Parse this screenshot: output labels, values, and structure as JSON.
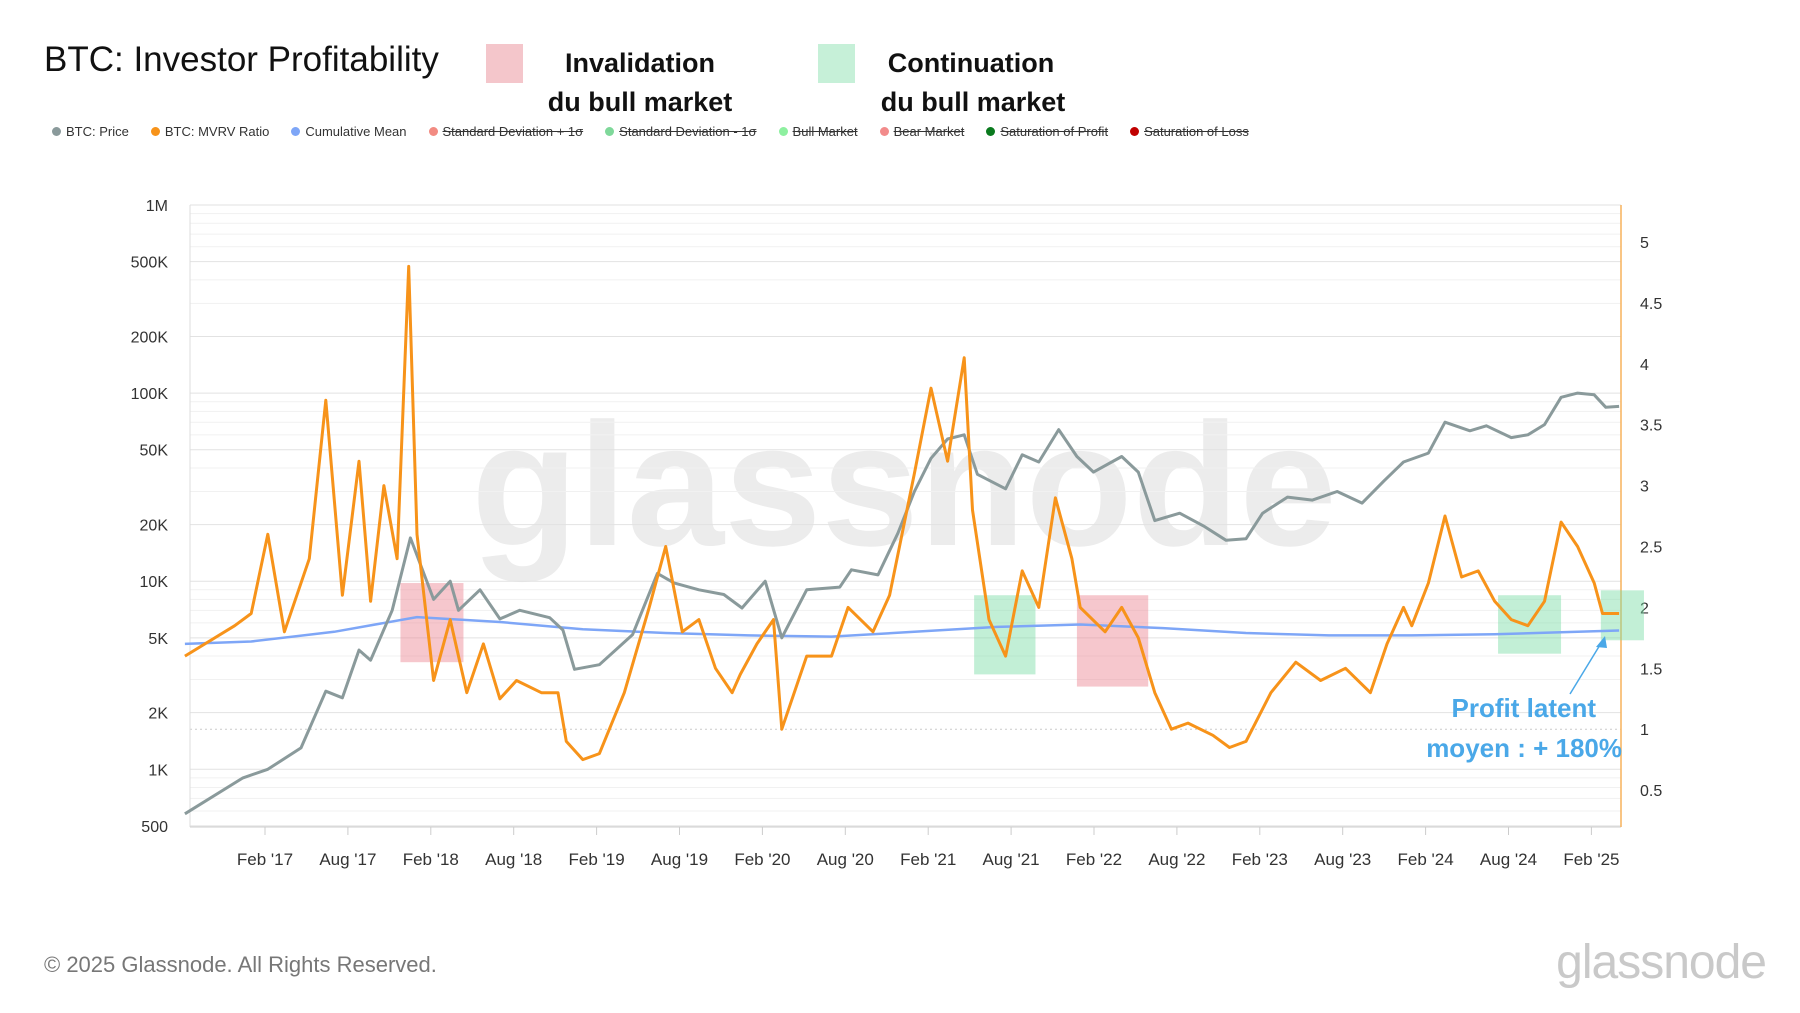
{
  "header": {
    "title": "BTC: Investor Profitability",
    "invalidation": {
      "line1": "Invalidation",
      "line2": "du bull market",
      "color": "#f4c6cb"
    },
    "continuation": {
      "line1": "Continuation",
      "line2": "du bull market",
      "color": "#c6f0d8"
    }
  },
  "legend": [
    {
      "label": "BTC: Price",
      "color": "#8a9a9b",
      "active": true
    },
    {
      "label": "BTC: MVRV Ratio",
      "color": "#f7931a",
      "active": true
    },
    {
      "label": "Cumulative Mean",
      "color": "#7ea6f7",
      "active": true
    },
    {
      "label": "Standard Deviation + 1σ",
      "color": "#f28b82",
      "active": false
    },
    {
      "label": "Standard Deviation - 1σ",
      "color": "#7fd89a",
      "active": false
    },
    {
      "label": "Bull Market",
      "color": "#8ef0a0",
      "active": false
    },
    {
      "label": "Bear Market",
      "color": "#f28b8b",
      "active": false
    },
    {
      "label": "Saturation of Profit",
      "color": "#0a7a1e",
      "active": false
    },
    {
      "label": "Saturation of Loss",
      "color": "#c00000",
      "active": false
    }
  ],
  "annotation": {
    "line1": "Profit latent",
    "line2": "moyen : + 180%",
    "color": "#4aa8e8"
  },
  "footer": {
    "copyright": "© 2025 Glassnode. All Rights Reserved.",
    "logo": "glassnode",
    "watermark": "glassnode"
  },
  "chart_data": {
    "type": "line",
    "title": "BTC: Investor Profitability",
    "x_ticks": [
      "Feb '17",
      "Aug '17",
      "Feb '18",
      "Aug '18",
      "Feb '19",
      "Aug '19",
      "Feb '20",
      "Aug '20",
      "Feb '21",
      "Aug '21",
      "Feb '22",
      "Aug '22",
      "Feb '23",
      "Aug '23",
      "Feb '24",
      "Aug '24",
      "Feb '25"
    ],
    "x_tick_dates": [
      2017.083,
      2017.583,
      2018.083,
      2018.583,
      2019.083,
      2019.583,
      2020.083,
      2020.583,
      2021.083,
      2021.583,
      2022.083,
      2022.583,
      2023.083,
      2023.583,
      2024.083,
      2024.583,
      2025.083
    ],
    "x_range": [
      2016.6,
      2025.3
    ],
    "left_axis": {
      "scale": "log",
      "range": [
        500,
        1000000
      ],
      "ticks": [
        {
          "v": 1000000,
          "l": "1M"
        },
        {
          "v": 500000,
          "l": "500K"
        },
        {
          "v": 200000,
          "l": "200K"
        },
        {
          "v": 100000,
          "l": "100K"
        },
        {
          "v": 50000,
          "l": "50K"
        },
        {
          "v": 20000,
          "l": "20K"
        },
        {
          "v": 10000,
          "l": "10K"
        },
        {
          "v": 5000,
          "l": "5K"
        },
        {
          "v": 2000,
          "l": "2K"
        },
        {
          "v": 1000,
          "l": "1K"
        },
        {
          "v": 500,
          "l": "500"
        }
      ]
    },
    "right_axis": {
      "scale": "linear",
      "range": [
        0.2,
        5.28
      ],
      "ticks": [
        {
          "v": 5,
          "l": "5"
        },
        {
          "v": 4.5,
          "l": "4.5"
        },
        {
          "v": 4,
          "l": "4"
        },
        {
          "v": 3.5,
          "l": "3.5"
        },
        {
          "v": 3,
          "l": "3"
        },
        {
          "v": 2.5,
          "l": "2.5"
        },
        {
          "v": 2,
          "l": "2"
        },
        {
          "v": 1.5,
          "l": "1.5"
        },
        {
          "v": 1,
          "l": "1"
        },
        {
          "v": 0.5,
          "l": "0.5"
        }
      ]
    },
    "series": [
      {
        "name": "BTC: Price",
        "axis": "left",
        "color": "#8a9a9b",
        "points": [
          [
            2016.6,
            580
          ],
          [
            2016.95,
            900
          ],
          [
            2017.1,
            1000
          ],
          [
            2017.3,
            1300
          ],
          [
            2017.45,
            2600
          ],
          [
            2017.55,
            2400
          ],
          [
            2017.65,
            4300
          ],
          [
            2017.72,
            3800
          ],
          [
            2017.85,
            7000
          ],
          [
            2017.96,
            17000
          ],
          [
            2018.1,
            8000
          ],
          [
            2018.2,
            10000
          ],
          [
            2018.25,
            7000
          ],
          [
            2018.38,
            9000
          ],
          [
            2018.5,
            6300
          ],
          [
            2018.62,
            7000
          ],
          [
            2018.8,
            6400
          ],
          [
            2018.88,
            5500
          ],
          [
            2018.95,
            3400
          ],
          [
            2019.1,
            3600
          ],
          [
            2019.3,
            5200
          ],
          [
            2019.45,
            11000
          ],
          [
            2019.55,
            9800
          ],
          [
            2019.7,
            9000
          ],
          [
            2019.85,
            8500
          ],
          [
            2019.96,
            7200
          ],
          [
            2020.1,
            10000
          ],
          [
            2020.2,
            5000
          ],
          [
            2020.35,
            9000
          ],
          [
            2020.55,
            9300
          ],
          [
            2020.62,
            11500
          ],
          [
            2020.78,
            10800
          ],
          [
            2020.9,
            18000
          ],
          [
            2021.0,
            30000
          ],
          [
            2021.1,
            45000
          ],
          [
            2021.2,
            57000
          ],
          [
            2021.3,
            60000
          ],
          [
            2021.38,
            37000
          ],
          [
            2021.55,
            31000
          ],
          [
            2021.65,
            47000
          ],
          [
            2021.75,
            43000
          ],
          [
            2021.87,
            64000
          ],
          [
            2021.98,
            46000
          ],
          [
            2022.08,
            38000
          ],
          [
            2022.25,
            46000
          ],
          [
            2022.35,
            38000
          ],
          [
            2022.45,
            21000
          ],
          [
            2022.6,
            23000
          ],
          [
            2022.75,
            19500
          ],
          [
            2022.88,
            16500
          ],
          [
            2023.0,
            16800
          ],
          [
            2023.1,
            23000
          ],
          [
            2023.25,
            28000
          ],
          [
            2023.4,
            27000
          ],
          [
            2023.55,
            30000
          ],
          [
            2023.7,
            26000
          ],
          [
            2023.83,
            34000
          ],
          [
            2023.95,
            43000
          ],
          [
            2024.1,
            48000
          ],
          [
            2024.2,
            70000
          ],
          [
            2024.35,
            63000
          ],
          [
            2024.45,
            67000
          ],
          [
            2024.6,
            58000
          ],
          [
            2024.7,
            60000
          ],
          [
            2024.8,
            68000
          ],
          [
            2024.9,
            95000
          ],
          [
            2025.0,
            100000
          ],
          [
            2025.1,
            98000
          ],
          [
            2025.17,
            84000
          ],
          [
            2025.25,
            85000
          ]
        ]
      },
      {
        "name": "BTC: MVRV Ratio",
        "axis": "right",
        "color": "#f7931a",
        "points": [
          [
            2016.6,
            1.6
          ],
          [
            2016.9,
            1.85
          ],
          [
            2017.0,
            1.95
          ],
          [
            2017.1,
            2.6
          ],
          [
            2017.2,
            1.8
          ],
          [
            2017.35,
            2.4
          ],
          [
            2017.45,
            3.7
          ],
          [
            2017.55,
            2.1
          ],
          [
            2017.65,
            3.2
          ],
          [
            2017.72,
            2.05
          ],
          [
            2017.8,
            3.0
          ],
          [
            2017.88,
            2.4
          ],
          [
            2017.95,
            4.8
          ],
          [
            2018.0,
            2.6
          ],
          [
            2018.1,
            1.4
          ],
          [
            2018.2,
            1.9
          ],
          [
            2018.3,
            1.3
          ],
          [
            2018.4,
            1.7
          ],
          [
            2018.5,
            1.25
          ],
          [
            2018.6,
            1.4
          ],
          [
            2018.75,
            1.3
          ],
          [
            2018.85,
            1.3
          ],
          [
            2018.9,
            0.9
          ],
          [
            2019.0,
            0.75
          ],
          [
            2019.1,
            0.8
          ],
          [
            2019.25,
            1.3
          ],
          [
            2019.4,
            2.0
          ],
          [
            2019.5,
            2.5
          ],
          [
            2019.6,
            1.8
          ],
          [
            2019.7,
            1.9
          ],
          [
            2019.8,
            1.5
          ],
          [
            2019.9,
            1.3
          ],
          [
            2019.95,
            1.45
          ],
          [
            2020.05,
            1.7
          ],
          [
            2020.15,
            1.9
          ],
          [
            2020.2,
            1.0
          ],
          [
            2020.35,
            1.6
          ],
          [
            2020.5,
            1.6
          ],
          [
            2020.6,
            2.0
          ],
          [
            2020.75,
            1.8
          ],
          [
            2020.85,
            2.1
          ],
          [
            2021.0,
            3.1
          ],
          [
            2021.1,
            3.8
          ],
          [
            2021.2,
            3.2
          ],
          [
            2021.3,
            4.05
          ],
          [
            2021.35,
            2.8
          ],
          [
            2021.45,
            1.9
          ],
          [
            2021.55,
            1.6
          ],
          [
            2021.65,
            2.3
          ],
          [
            2021.75,
            2.0
          ],
          [
            2021.85,
            2.9
          ],
          [
            2021.95,
            2.4
          ],
          [
            2022.0,
            2.0
          ],
          [
            2022.15,
            1.8
          ],
          [
            2022.25,
            2.0
          ],
          [
            2022.35,
            1.75
          ],
          [
            2022.45,
            1.3
          ],
          [
            2022.55,
            1.0
          ],
          [
            2022.65,
            1.05
          ],
          [
            2022.8,
            0.95
          ],
          [
            2022.9,
            0.85
          ],
          [
            2023.0,
            0.9
          ],
          [
            2023.15,
            1.3
          ],
          [
            2023.3,
            1.55
          ],
          [
            2023.45,
            1.4
          ],
          [
            2023.6,
            1.5
          ],
          [
            2023.75,
            1.3
          ],
          [
            2023.85,
            1.7
          ],
          [
            2023.95,
            2.0
          ],
          [
            2024.0,
            1.85
          ],
          [
            2024.1,
            2.2
          ],
          [
            2024.2,
            2.75
          ],
          [
            2024.3,
            2.25
          ],
          [
            2024.4,
            2.3
          ],
          [
            2024.5,
            2.05
          ],
          [
            2024.6,
            1.9
          ],
          [
            2024.7,
            1.85
          ],
          [
            2024.8,
            2.05
          ],
          [
            2024.9,
            2.7
          ],
          [
            2025.0,
            2.5
          ],
          [
            2025.1,
            2.2
          ],
          [
            2025.15,
            1.95
          ],
          [
            2025.25,
            1.95
          ]
        ]
      },
      {
        "name": "Cumulative Mean",
        "axis": "right",
        "color": "#7ea6f7",
        "points": [
          [
            2016.6,
            1.7
          ],
          [
            2017.0,
            1.72
          ],
          [
            2017.5,
            1.8
          ],
          [
            2018.0,
            1.92
          ],
          [
            2018.5,
            1.88
          ],
          [
            2019.0,
            1.82
          ],
          [
            2019.5,
            1.79
          ],
          [
            2020.0,
            1.77
          ],
          [
            2020.5,
            1.76
          ],
          [
            2021.0,
            1.8
          ],
          [
            2021.5,
            1.84
          ],
          [
            2022.0,
            1.86
          ],
          [
            2022.5,
            1.83
          ],
          [
            2023.0,
            1.79
          ],
          [
            2023.5,
            1.77
          ],
          [
            2024.0,
            1.77
          ],
          [
            2024.5,
            1.78
          ],
          [
            2025.0,
            1.8
          ],
          [
            2025.25,
            1.81
          ]
        ]
      }
    ],
    "highlights": [
      {
        "kind": "invalidation",
        "x": [
          2017.9,
          2018.28
        ],
        "y": [
          1.55,
          2.2
        ]
      },
      {
        "kind": "continuation",
        "x": [
          2021.36,
          2021.73
        ],
        "y": [
          1.45,
          2.1
        ]
      },
      {
        "kind": "invalidation",
        "x": [
          2021.98,
          2022.41
        ],
        "y": [
          1.35,
          2.1
        ]
      },
      {
        "kind": "continuation",
        "x": [
          2024.52,
          2024.9
        ],
        "y": [
          1.62,
          2.1
        ]
      },
      {
        "kind": "continuation",
        "x": [
          2025.14,
          2025.4
        ],
        "y": [
          1.73,
          2.14
        ]
      }
    ]
  }
}
